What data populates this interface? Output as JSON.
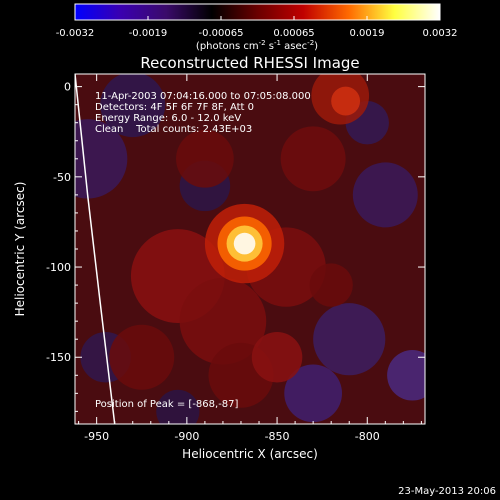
{
  "chart_data": {
    "type": "heatmap",
    "title": "Reconstructed RHESSI Image",
    "xlabel": "Heliocentric X (arcsec)",
    "ylabel": "Heliocentric Y (arcsec)",
    "xlim": [
      -962,
      -768
    ],
    "ylim": [
      -187,
      7
    ],
    "x_ticks": [
      -950,
      -900,
      -850,
      -800
    ],
    "y_ticks": [
      0,
      -50,
      -100,
      -150
    ],
    "colorbar": {
      "range": [
        -0.0032,
        0.0032
      ],
      "ticks": [
        "-0.0032",
        "-0.0019",
        "-0.00065",
        "0.00065",
        "0.0019",
        "0.0032"
      ],
      "unit_label": "(photons cm",
      "unit_exp1": "-2",
      "unit_mid": " s",
      "unit_exp2": "-1",
      "unit_tail": " asec",
      "unit_exp3": "-2",
      "unit_close": ")",
      "colors": [
        "#0000ff",
        "#3a00b0",
        "#3a0a6a",
        "#000000",
        "#6a0000",
        "#c00000",
        "#ff6a00",
        "#ffff40",
        "#ffffff"
      ]
    },
    "annotations": [
      "11-Apr-2003 07:04:16.000 to 07:05:08.000",
      "Detectors: 4F 5F 6F 7F 8F, Att 0",
      "Energy Range: 6.0 - 12.0 keV",
      "Clean    Total counts: 2.43E+03"
    ],
    "peak_label": "Position of Peak = [-868,-87]",
    "peak": [
      -868,
      -87
    ],
    "limb_points": [
      [
        -962,
        7
      ],
      [
        -955,
        -60
      ],
      [
        -948,
        -120
      ],
      [
        -940,
        -187
      ]
    ]
  },
  "footer": {
    "date": "23-May-2013 20:06"
  }
}
